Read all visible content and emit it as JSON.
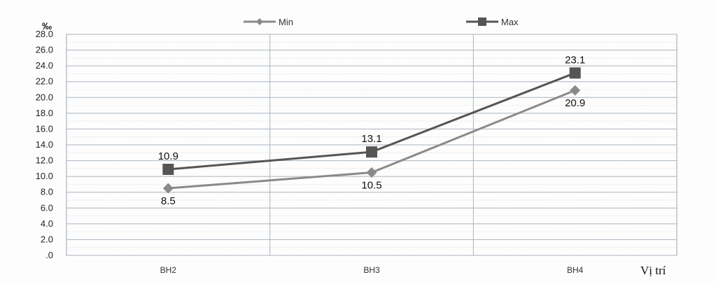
{
  "chart_data": {
    "type": "line",
    "ylabel": "‰",
    "xlabel": "Vị trí",
    "categories": [
      "BH2",
      "BH3",
      "BH4"
    ],
    "ylim": [
      0,
      28
    ],
    "yticks": [
      ".0",
      "2.0",
      "4.0",
      "6.0",
      "8.0",
      "10.0",
      "12.0",
      "14.0",
      "16.0",
      "18.0",
      "20.0",
      "22.0",
      "24.0",
      "26.0",
      "28.0"
    ],
    "grid": true,
    "legend_position": "top",
    "series": [
      {
        "name": "Min",
        "values": [
          8.5,
          10.5,
          20.9
        ],
        "labels": [
          "8.5",
          "10.5",
          "20.9"
        ],
        "marker": "diamond",
        "color": "#8a8a8a"
      },
      {
        "name": "Max",
        "values": [
          10.9,
          13.1,
          23.1
        ],
        "labels": [
          "10.9",
          "13.1",
          "23.1"
        ],
        "marker": "square",
        "color": "#555555"
      }
    ]
  }
}
